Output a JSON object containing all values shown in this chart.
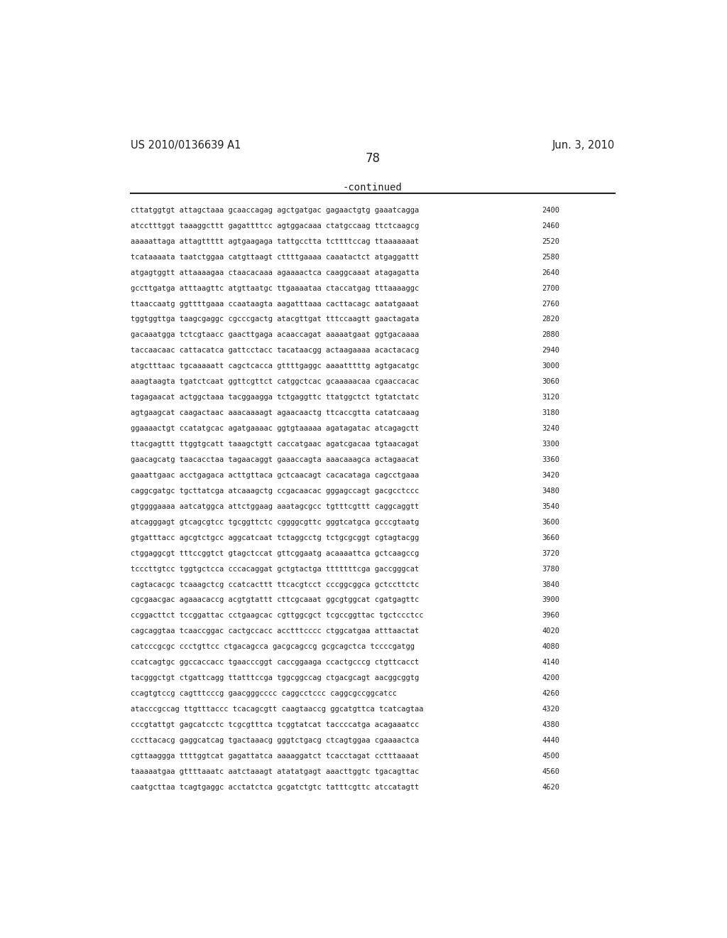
{
  "header_left": "US 2010/0136639 A1",
  "header_right": "Jun. 3, 2010",
  "page_number": "78",
  "continued_label": "-continued",
  "background_color": "#ffffff",
  "text_color": "#231f20",
  "font_size_header": 10.5,
  "font_size_page": 12,
  "font_size_continued": 10,
  "font_size_sequence": 7.5,
  "sequence_lines": [
    [
      "cttatggtgt attagctaaa gcaaccagag agctgatgac gagaactgtg gaaatcagga",
      "2400"
    ],
    [
      "atcctttggt taaaggcttt gagattttcc agtggacaaa ctatgccaag ttctcaagcg",
      "2460"
    ],
    [
      "aaaaattaga attagttttt agtgaagaga tattgcctta tcttttccag ttaaaaaaat",
      "2520"
    ],
    [
      "tcataaaata taatctggaa catgttaagt cttttgaaaa caaatactct atgaggattt",
      "2580"
    ],
    [
      "atgagtggtt attaaaagaa ctaacacaaa agaaaactca caaggcaaat atagagatta",
      "2640"
    ],
    [
      "gccttgatga atttaagttc atgttaatgc ttgaaaataa ctaccatgag tttaaaaggc",
      "2700"
    ],
    [
      "ttaaccaatg ggttttgaaa ccaataagta aagatttaaa cacttacagc aatatgaaat",
      "2760"
    ],
    [
      "tggtggttga taagcgaggc cgcccgactg atacgttgat tttccaagtt gaactagata",
      "2820"
    ],
    [
      "gacaaatgga tctcgtaacc gaacttgaga acaaccagat aaaaatgaat ggtgacaaaa",
      "2880"
    ],
    [
      "taccaacaac cattacatca gattcctacc tacataacgg actaagaaaa acactacacg",
      "2940"
    ],
    [
      "atgctttaac tgcaaaaatt cagctcacca gttttgaggc aaaatttttg agtgacatgc",
      "3000"
    ],
    [
      "aaagtaagta tgatctcaat ggttcgttct catggctcac gcaaaaacaa cgaaccacac",
      "3060"
    ],
    [
      "tagagaacat actggctaaa tacggaagga tctgaggttc ttatggctct tgtatctatc",
      "3120"
    ],
    [
      "agtgaagcat caagactaac aaacaaaagt agaacaactg ttcaccgtta catatcaaag",
      "3180"
    ],
    [
      "ggaaaactgt ccatatgcac agatgaaaac ggtgtaaaaa agatagatac atcagagctt",
      "3240"
    ],
    [
      "ttacgagttt ttggtgcatt taaagctgtt caccatgaac agatcgacaa tgtaacagat",
      "3300"
    ],
    [
      "gaacagcatg taacacctaa tagaacaggt gaaaccagta aaacaaagca actagaacat",
      "3360"
    ],
    [
      "gaaattgaac acctgagaca acttgttaca gctcaacagt cacacataga cagcctgaaa",
      "3420"
    ],
    [
      "caggcgatgc tgcttatcga atcaaagctg ccgacaacac gggagccagt gacgcctccc",
      "3480"
    ],
    [
      "gtggggaaaa aatcatggca attctggaag aaatagcgcc tgtttcgttt caggcaggtt",
      "3540"
    ],
    [
      "atcagggagt gtcagcgtcc tgcggttctc cggggcgttc gggtcatgca gcccgtaatg",
      "3600"
    ],
    [
      "gtgatttacc agcgtctgcc aggcatcaat tctaggcctg tctgcgcggt cgtagtacgg",
      "3660"
    ],
    [
      "ctggaggcgt tttccggtct gtagctccat gttcggaatg acaaaattca gctcaagccg",
      "3720"
    ],
    [
      "tcccttgtcc tggtgctcca cccacaggat gctgtactga tttttttcga gaccgggcat",
      "3780"
    ],
    [
      "cagtacacgc tcaaagctcg ccatcacttt ttcacgtcct cccggcggca gctccttctc",
      "3840"
    ],
    [
      "cgcgaacgac agaaacaccg acgtgtattt cttcgcaaat ggcgtggcat cgatgagttc",
      "3900"
    ],
    [
      "ccggacttct tccggattac cctgaagcac cgttggcgct tcgccggttac tgctccctcc",
      "3960"
    ],
    [
      "cagcaggtaa tcaaccggac cactgccacc acctttcccc ctggcatgaa atttaactat",
      "4020"
    ],
    [
      "catcccgcgc ccctgttcc ctgacagcca gacgcagccg gcgcagctca tccccgatgg",
      "4080"
    ],
    [
      "ccatcagtgc ggccaccacc tgaacccggt caccggaaga ccactgcccg ctgttcacct",
      "4140"
    ],
    [
      "tacgggctgt ctgattcagg ttatttccga tggcggccag ctgacgcagt aacggcggtg",
      "4200"
    ],
    [
      "ccagtgtccg cagtttcccg gaacgggcccc caggcctccc caggcgccggcatcc",
      "4260"
    ],
    [
      "atacccgccag ttgtttaccc tcacagcgtt caagtaaccg ggcatgttca tcatcagtaa",
      "4320"
    ],
    [
      "cccgtattgt gagcatcctc tcgcgtttca tcggtatcat taccccatga acagaaatcc",
      "4380"
    ],
    [
      "cccttacacg gaggcatcag tgactaaacg gggtctgacg ctcagtggaa cgaaaactca",
      "4440"
    ],
    [
      "cgttaaggga ttttggtcat gagattatca aaaaggatct tcacctagat cctttaaaat",
      "4500"
    ],
    [
      "taaaaatgaa gttttaaatc aatctaaagt atatatgagt aaacttggtc tgacagttac",
      "4560"
    ],
    [
      "caatgcttaa tcagtgaggc acctatctca gcgatctgtc tatttcgttc atccatagtt",
      "4620"
    ]
  ]
}
